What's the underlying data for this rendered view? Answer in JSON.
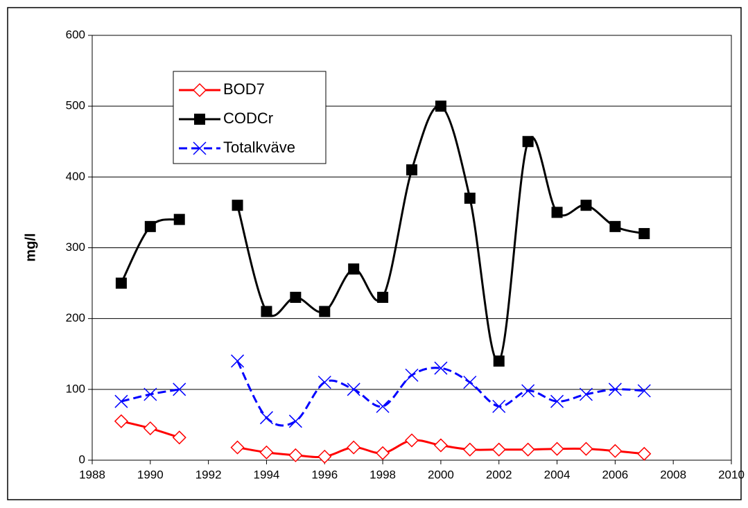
{
  "chart_data": {
    "type": "line",
    "y_label": "mg/l",
    "x": [
      1989,
      1990,
      1991,
      1992,
      1993,
      1994,
      1995,
      1996,
      1997,
      1998,
      1999,
      2000,
      2001,
      2002,
      2003,
      2004,
      2005,
      2006,
      2007
    ],
    "series": [
      {
        "name": "BOD7",
        "color": "#ff0000",
        "marker": "diamond",
        "dashed": false,
        "values": [
          55,
          45,
          32,
          null,
          18,
          11,
          7,
          5,
          18,
          10,
          28,
          21,
          15,
          15,
          15,
          16,
          16,
          13,
          9
        ]
      },
      {
        "name": "CODCr",
        "color": "#000000",
        "marker": "square",
        "dashed": false,
        "values": [
          250,
          330,
          340,
          null,
          360,
          210,
          230,
          210,
          270,
          230,
          410,
          500,
          370,
          140,
          450,
          350,
          360,
          330,
          320
        ]
      },
      {
        "name": "Totalkväve",
        "color": "#0000ff",
        "marker": "x",
        "dashed": true,
        "values": [
          83,
          93,
          100,
          null,
          140,
          60,
          55,
          110,
          100,
          76,
          120,
          130,
          110,
          76,
          98,
          83,
          93,
          100,
          98
        ]
      }
    ],
    "xlim": [
      1988,
      2010
    ],
    "xticks": [
      1988,
      1990,
      1992,
      1994,
      1996,
      1998,
      2000,
      2002,
      2004,
      2006,
      2008,
      2010
    ],
    "ylim": [
      0,
      600
    ],
    "yticks": [
      0,
      100,
      200,
      300,
      400,
      500,
      600
    ],
    "grid": true,
    "smooth": true,
    "legend": "upper left"
  }
}
